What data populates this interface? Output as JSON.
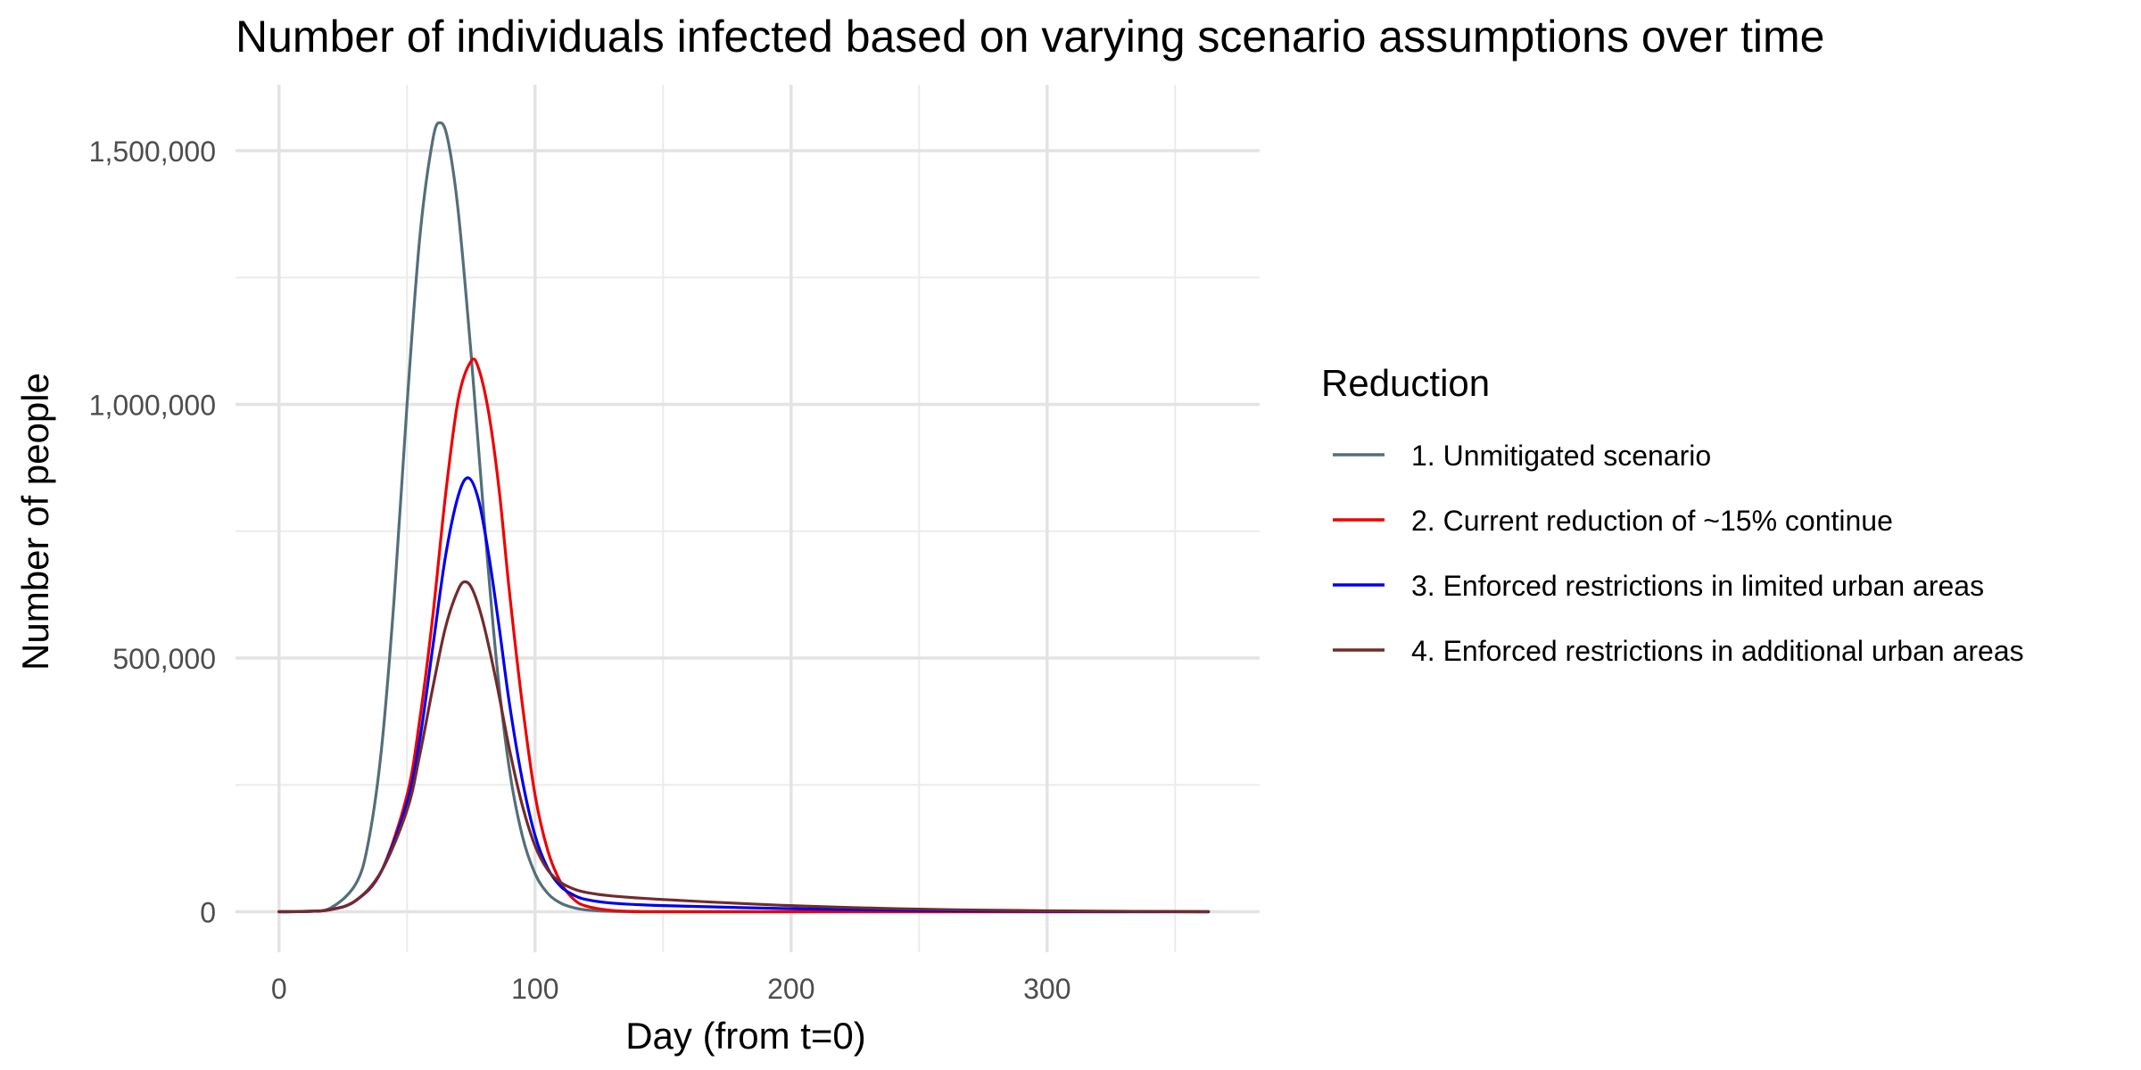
{
  "chart_data": {
    "type": "line",
    "title": "Number of individuals infected based on varying scenario assumptions over time",
    "xlabel": "Day (from t=0)",
    "ylabel": "Number of people",
    "xlim": [
      -17,
      383
    ],
    "ylim": [
      -80000,
      1630000
    ],
    "xticks": [
      0,
      100,
      200,
      300
    ],
    "xtick_labels": [
      "0",
      "100",
      "200",
      "300"
    ],
    "x_minor_grid": [
      50,
      150,
      250,
      350
    ],
    "yticks": [
      0,
      500000,
      1000000,
      1500000
    ],
    "ytick_labels": [
      "0",
      "500,000",
      "1,000,000",
      "1,500,000"
    ],
    "y_minor_grid": [
      250000,
      750000,
      1250000
    ],
    "grid": true,
    "legend": {
      "title": "Reduction",
      "position": "right"
    },
    "series": [
      {
        "name": "1. Unmitigated scenario",
        "color": "#546e7a",
        "points": [
          [
            0,
            0
          ],
          [
            10,
            800
          ],
          [
            20,
            7000
          ],
          [
            30,
            55000
          ],
          [
            35,
            140000
          ],
          [
            40,
            320000
          ],
          [
            45,
            620000
          ],
          [
            50,
            1000000
          ],
          [
            55,
            1330000
          ],
          [
            60,
            1520000
          ],
          [
            63,
            1555000
          ],
          [
            66,
            1520000
          ],
          [
            70,
            1380000
          ],
          [
            75,
            1100000
          ],
          [
            80,
            780000
          ],
          [
            85,
            490000
          ],
          [
            90,
            280000
          ],
          [
            95,
            150000
          ],
          [
            100,
            75000
          ],
          [
            105,
            36000
          ],
          [
            110,
            17000
          ],
          [
            115,
            8000
          ],
          [
            120,
            3500
          ],
          [
            130,
            700
          ],
          [
            140,
            100
          ],
          [
            160,
            0
          ],
          [
            363,
            0
          ]
        ]
      },
      {
        "name": "2. Current reduction of ~15% continue",
        "color": "#ee0000",
        "points": [
          [
            0,
            0
          ],
          [
            10,
            500
          ],
          [
            20,
            4000
          ],
          [
            30,
            22000
          ],
          [
            40,
            80000
          ],
          [
            50,
            230000
          ],
          [
            55,
            380000
          ],
          [
            60,
            580000
          ],
          [
            65,
            820000
          ],
          [
            70,
            1010000
          ],
          [
            75,
            1085000
          ],
          [
            78,
            1070000
          ],
          [
            82,
            980000
          ],
          [
            86,
            830000
          ],
          [
            90,
            630000
          ],
          [
            95,
            410000
          ],
          [
            100,
            230000
          ],
          [
            105,
            120000
          ],
          [
            110,
            58000
          ],
          [
            115,
            25000
          ],
          [
            120,
            11000
          ],
          [
            130,
            2500
          ],
          [
            140,
            500
          ],
          [
            160,
            0
          ],
          [
            363,
            0
          ]
        ]
      },
      {
        "name": "3. Enforced restrictions in limited urban areas",
        "color": "#0000ee",
        "points": [
          [
            0,
            0
          ],
          [
            10,
            500
          ],
          [
            20,
            4000
          ],
          [
            30,
            22000
          ],
          [
            40,
            80000
          ],
          [
            50,
            215000
          ],
          [
            55,
            340000
          ],
          [
            60,
            520000
          ],
          [
            65,
            700000
          ],
          [
            70,
            820000
          ],
          [
            74,
            855000
          ],
          [
            78,
            810000
          ],
          [
            82,
            700000
          ],
          [
            86,
            560000
          ],
          [
            90,
            410000
          ],
          [
            95,
            260000
          ],
          [
            100,
            150000
          ],
          [
            105,
            85000
          ],
          [
            110,
            50000
          ],
          [
            115,
            33000
          ],
          [
            120,
            24000
          ],
          [
            130,
            17000
          ],
          [
            150,
            12000
          ],
          [
            200,
            6000
          ],
          [
            250,
            2500
          ],
          [
            300,
            800
          ],
          [
            363,
            0
          ]
        ]
      },
      {
        "name": "4. Enforced restrictions in additional urban areas",
        "color": "#722b2b",
        "points": [
          [
            0,
            0
          ],
          [
            10,
            500
          ],
          [
            20,
            4000
          ],
          [
            30,
            22000
          ],
          [
            40,
            80000
          ],
          [
            50,
            200000
          ],
          [
            55,
            310000
          ],
          [
            60,
            440000
          ],
          [
            65,
            560000
          ],
          [
            70,
            635000
          ],
          [
            73,
            650000
          ],
          [
            76,
            630000
          ],
          [
            80,
            565000
          ],
          [
            85,
            450000
          ],
          [
            90,
            320000
          ],
          [
            95,
            210000
          ],
          [
            100,
            130000
          ],
          [
            105,
            82000
          ],
          [
            110,
            58000
          ],
          [
            115,
            45000
          ],
          [
            120,
            38000
          ],
          [
            130,
            31000
          ],
          [
            150,
            24000
          ],
          [
            200,
            12000
          ],
          [
            250,
            5000
          ],
          [
            300,
            1800
          ],
          [
            363,
            0
          ]
        ]
      }
    ]
  }
}
